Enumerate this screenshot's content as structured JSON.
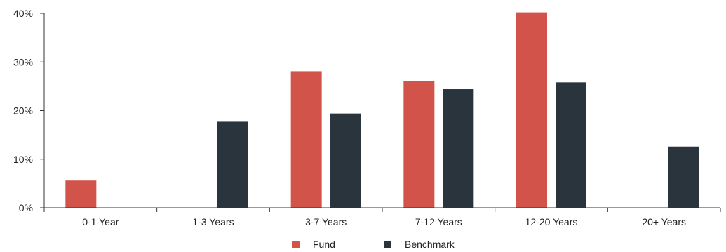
{
  "chart_data": {
    "type": "bar",
    "categories": [
      "0-1 Year",
      "1-3 Years",
      "3-7 Years",
      "7-12 Years",
      "12-20 Years",
      "20+ Years"
    ],
    "series": [
      {
        "name": "Fund",
        "color": "#d2534a",
        "values": [
          5.6,
          0,
          28.1,
          26.1,
          40.2,
          0
        ]
      },
      {
        "name": "Benchmark",
        "color": "#29343d",
        "values": [
          0,
          17.7,
          19.4,
          24.4,
          25.8,
          12.6
        ]
      }
    ],
    "y_ticks": [
      "0%",
      "10%",
      "20%",
      "30%",
      "40%"
    ],
    "ylim": [
      0,
      40
    ],
    "grid": false,
    "legend_position": "bottom-center"
  }
}
